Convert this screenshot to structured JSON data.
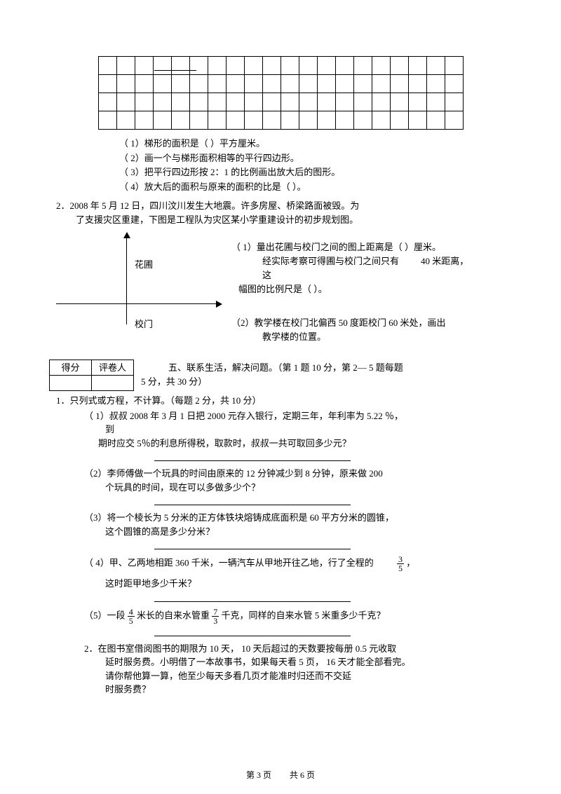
{
  "grid": {
    "rows": 4,
    "cols": 20
  },
  "q1": {
    "l1": "（ 1）梯形的面积是（            ）平方厘米。",
    "l2": "（ 2）画一个与梯形面积相等的平行四边形。",
    "l3": "（ 3）把平行四边形按  2：1 的比例画出放大后的图形。",
    "l4": "（ 4）放大后的面积与原来的面积的比是（              ）。"
  },
  "q2": {
    "head": "2．2008 年 5 月 12 日，四川汶川发生大地震。许多房屋、桥梁路面被毁。为",
    "head2": "了支援灾区重建，下图是工程队为灾区某小学重建设计的初步规划图。",
    "label_flower": "花圃",
    "label_gate": "校门",
    "r1a": "（ 1）量出花圃与校门之间的图上距离是（        ）厘米。",
    "r1b": "经实际考察可得圃与校门之间只有",
    "r1c": "40 米距离，",
    "r1d": "这",
    "r1e": "幅图的比例尺是（                        ）。",
    "r2a": "（2）教学楼在校门北偏西  50 度距校门 60 米处，画出",
    "r2b": "教学楼的位置。"
  },
  "score": {
    "c1": "得分",
    "c2": "评卷人"
  },
  "sec5": {
    "title": "五、联系生活，解决问题。（第 1 题 10 分，第 2— 5 题每题",
    "title2": "5 分，共 30 分）"
  },
  "p1": {
    "head": "1．只列式或方程，不计算。（每题 2 分，共 10 分）",
    "s1a": "（ 1）叔叔 2008 年 3 月 1 日把 2000 元存入银行，定期三年，年利率为    5.22 ％，",
    "s1b": "到",
    "s1c": "期时应交 5％的利息所得税，取款时，叔叔一共可取回多少元？",
    "s2a": "（2）李师傅做一个玩具的时间由原来的    12 分钟减少到     8 分钟，原来做  200",
    "s2b": "个玩具的时间，现在可以多做多少个？",
    "s3a": "（3）将一个棱长为 5 分米的正方体铁块熔铸成底面积是 60 平方分米的圆锥，",
    "s3b": "这个圆锥的高是多少分米？",
    "s4a": "（ 4）甲、乙两地相距  360 千米，一辆汽车从甲地开往乙地，行了全程的",
    "s4n": "3",
    "s4d": "5",
    "s4p": "，",
    "s4b": "这时距甲地多少千米？",
    "s5a": "（5）一段",
    "s5n1": "4",
    "s5d1": "5",
    "s5m": "米长的自来水管重",
    "s5n2": "7",
    "s5d2": "3",
    "s5e": "千克，同样的自来水管  5 米重多少千克？"
  },
  "p2": {
    "a": "2．在图书室借阅图书的期限为 10 天， 10 天后超过的天数要按每册 0.5 元收取",
    "b": "延时服务费。小明借了一本故事书，如果每天看 5 页， 16 天才能全部看完。",
    "c": "请你帮他算一算，他至少每天多看几页才能准时归还而不交延",
    "d": "时服务费？"
  },
  "footer": {
    "page": "第 3 页",
    "total": "共 6 页"
  }
}
